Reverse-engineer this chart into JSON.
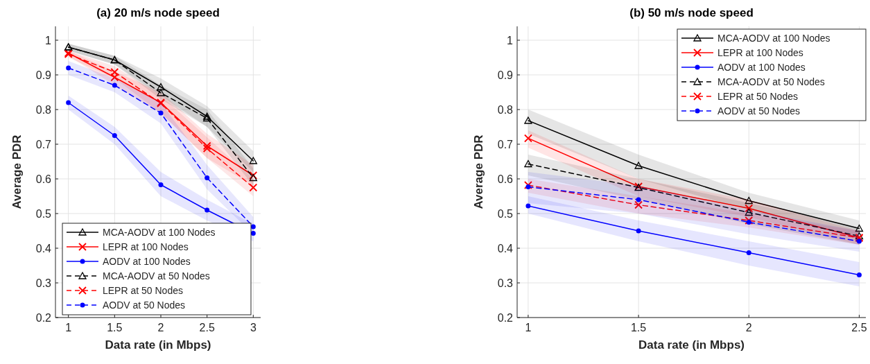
{
  "chart_data": [
    {
      "type": "line",
      "title": "(a) 20 m/s node speed",
      "xlabel": "Data rate (in Mbps)",
      "ylabel": "Average PDR",
      "x": [
        1,
        1.5,
        2,
        2.5,
        3
      ],
      "xlim": [
        0.86,
        3.08
      ],
      "xticks": [
        1,
        1.5,
        2,
        2.5,
        3
      ],
      "ylim": [
        0.2,
        1.04
      ],
      "yticks": [
        0.2,
        0.3,
        0.4,
        0.5,
        0.6,
        0.7,
        0.8,
        0.9,
        1
      ],
      "grid": true,
      "legend": "bottom left",
      "series": [
        {
          "name": "MCA-AODV at 100 Nodes",
          "color": "#000000",
          "marker": "triangle",
          "line_style": "solid",
          "values": [
            0.98,
            0.943,
            0.865,
            0.78,
            0.652
          ],
          "lower": [
            0.97,
            0.93,
            0.84,
            0.75,
            0.62
          ],
          "upper": [
            0.99,
            0.955,
            0.89,
            0.81,
            0.68
          ]
        },
        {
          "name": "LEPR at 100 Nodes",
          "color": "#ff0000",
          "marker": "cross",
          "line_style": "solid",
          "values": [
            0.963,
            0.893,
            0.82,
            0.695,
            0.61
          ],
          "lower": [
            0.955,
            0.87,
            0.79,
            0.66,
            0.58
          ],
          "upper": [
            0.97,
            0.91,
            0.85,
            0.73,
            0.64
          ]
        },
        {
          "name": "AODV at 100 Nodes",
          "color": "#0000ff",
          "marker": "circle",
          "line_style": "solid",
          "values": [
            0.82,
            0.725,
            0.583,
            0.51,
            0.443
          ],
          "lower": [
            0.8,
            0.7,
            0.55,
            0.48,
            0.42
          ],
          "upper": [
            0.84,
            0.75,
            0.62,
            0.54,
            0.47
          ]
        },
        {
          "name": "MCA-AODV at 50 Nodes",
          "color": "#000000",
          "marker": "triangle",
          "line_style": "dashed",
          "values": [
            0.98,
            0.943,
            0.848,
            0.775,
            0.603
          ],
          "lower": [
            0.97,
            0.93,
            0.83,
            0.75,
            0.58
          ],
          "upper": [
            0.99,
            0.955,
            0.87,
            0.8,
            0.63
          ]
        },
        {
          "name": "LEPR at 50 Nodes",
          "color": "#ff0000",
          "marker": "cross",
          "line_style": "dashed",
          "values": [
            0.96,
            0.908,
            0.818,
            0.688,
            0.575
          ],
          "lower": [
            0.95,
            0.89,
            0.79,
            0.66,
            0.55
          ],
          "upper": [
            0.97,
            0.925,
            0.84,
            0.72,
            0.6
          ]
        },
        {
          "name": "AODV at 50 Nodes",
          "color": "#0000ff",
          "marker": "circle",
          "line_style": "dashed",
          "values": [
            0.92,
            0.87,
            0.79,
            0.603,
            0.462
          ],
          "lower": [
            0.9,
            0.85,
            0.76,
            0.57,
            0.44
          ],
          "upper": [
            0.94,
            0.89,
            0.82,
            0.64,
            0.49
          ]
        }
      ]
    },
    {
      "type": "line",
      "title": "(b) 50 m/s node speed",
      "xlabel": "Data rate (in Mbps)",
      "ylabel": "Average PDR",
      "x": [
        1,
        1.5,
        2,
        2.5
      ],
      "xlim": [
        0.95,
        2.53
      ],
      "xticks": [
        1,
        1.5,
        2,
        2.5
      ],
      "ylim": [
        0.2,
        1.04
      ],
      "yticks": [
        0.2,
        0.3,
        0.4,
        0.5,
        0.6,
        0.7,
        0.8,
        0.9,
        1
      ],
      "grid": true,
      "legend": "top right",
      "series": [
        {
          "name": "MCA-AODV at 100 Nodes",
          "color": "#000000",
          "marker": "triangle",
          "line_style": "solid",
          "values": [
            0.768,
            0.638,
            0.537,
            0.457
          ],
          "lower": [
            0.73,
            0.6,
            0.51,
            0.43
          ],
          "upper": [
            0.8,
            0.67,
            0.56,
            0.48
          ]
        },
        {
          "name": "LEPR at 100 Nodes",
          "color": "#ff0000",
          "marker": "cross",
          "line_style": "solid",
          "values": [
            0.717,
            0.578,
            0.515,
            0.43
          ],
          "lower": [
            0.69,
            0.55,
            0.49,
            0.41
          ],
          "upper": [
            0.74,
            0.6,
            0.54,
            0.45
          ]
        },
        {
          "name": "AODV at 100 Nodes",
          "color": "#0000ff",
          "marker": "circle",
          "line_style": "solid",
          "values": [
            0.522,
            0.45,
            0.387,
            0.323
          ],
          "lower": [
            0.5,
            0.42,
            0.35,
            0.29
          ],
          "upper": [
            0.55,
            0.48,
            0.42,
            0.36
          ]
        },
        {
          "name": "MCA-AODV at 50 Nodes",
          "color": "#000000",
          "marker": "triangle",
          "line_style": "dashed",
          "values": [
            0.643,
            0.575,
            0.503,
            0.435
          ],
          "lower": [
            0.61,
            0.54,
            0.47,
            0.41
          ],
          "upper": [
            0.67,
            0.6,
            0.53,
            0.46
          ]
        },
        {
          "name": "LEPR at 50 Nodes",
          "color": "#ff0000",
          "marker": "cross",
          "line_style": "dashed",
          "values": [
            0.582,
            0.525,
            0.48,
            0.43
          ],
          "lower": [
            0.56,
            0.5,
            0.46,
            0.41
          ],
          "upper": [
            0.6,
            0.55,
            0.5,
            0.45
          ]
        },
        {
          "name": "AODV at 50 Nodes",
          "color": "#0000ff",
          "marker": "circle",
          "line_style": "dashed",
          "values": [
            0.577,
            0.54,
            0.475,
            0.42
          ],
          "lower": [
            0.53,
            0.5,
            0.44,
            0.39
          ],
          "upper": [
            0.62,
            0.58,
            0.51,
            0.45
          ]
        }
      ]
    }
  ]
}
